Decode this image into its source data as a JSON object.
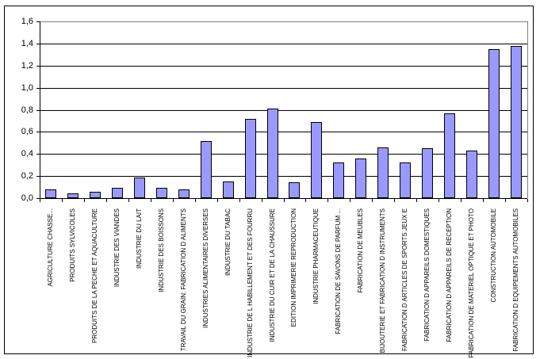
{
  "chart_data": {
    "type": "bar",
    "title": "",
    "xlabel": "",
    "ylabel": "",
    "categories": [
      "AGRICULTURE CHASSE...",
      "PRODUITS SYLVICOLES",
      "PRODUITS DE LA PECHE ET AQUACULTURE",
      "INDUSTRIE DES VIANDES",
      "INDUSTRIE DU LAIT",
      "INDUSTRIE DES BOISSONS",
      "TRAVAIL DU GRAIN: FABRICATION D ALIMENTS",
      "INDUSTRIES ALIMENTAIRES DIVERSES",
      "INDUSTRIE DU TABAC",
      "INDUSTRIE DE L HABILLEMENT ET DES FOURRU",
      "INDUSTRIE DU CUIR ET DE LA CHAUSSURE",
      "EDITION IMPRIMERIE REPRODUCTION",
      "INDUSTRIE PHARMACEUTIQUE",
      "FABRICATION DE SAVONS DE PARFUM ...",
      "FABRICATION DE MEUBLES",
      "BIJOUTERIE ET FABRICATION D INSTRUMENTS",
      "FABRICATION D ARTICLES DE SPORTS JEUX E",
      "FABRICATION D APPAREILS DOMESTIQUES",
      "FABRICATION D APPAREILS DE RECEPTION",
      "FABRICATION DE MATERIEL OPTIQUE ET PHOTO",
      "CONSTRUCTION AUTOMOBILE",
      "FABRICATION D EQUIPEMENTS AUTOMOBILES"
    ],
    "values": [
      0.08,
      0.04,
      0.06,
      0.09,
      0.19,
      0.09,
      0.08,
      0.52,
      0.15,
      0.72,
      0.81,
      0.14,
      0.69,
      0.32,
      0.36,
      0.46,
      0.32,
      0.45,
      0.77,
      0.43,
      1.35,
      1.38
    ],
    "ylim": [
      0,
      1.6
    ],
    "ytick_values": [
      0,
      0.2,
      0.4,
      0.6,
      0.8,
      1.0,
      1.2,
      1.4,
      1.6
    ],
    "ytick_labels": [
      "0,0",
      "0,2",
      "0,4",
      "0,6",
      "0,8",
      "1,0",
      "1,2",
      "1,4",
      "1,6"
    ],
    "grid": true,
    "legend": false,
    "colors": {
      "bar_fill": "#9999FF",
      "bar_border": "#000000",
      "gridline": "#000000",
      "plot_border": "#808080",
      "axis": "#000000",
      "background": "#FFFFFF"
    }
  }
}
